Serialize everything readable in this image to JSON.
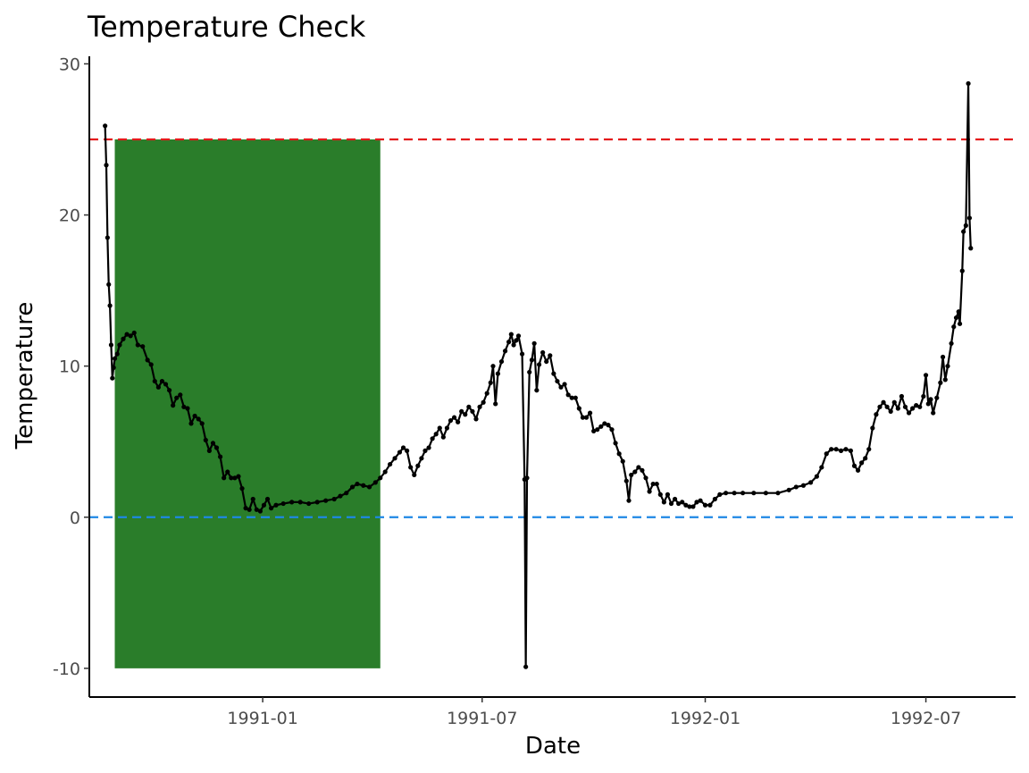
{
  "chart_data": {
    "type": "line",
    "title": "Temperature Check",
    "xlabel": "Date",
    "ylabel": "Temperature",
    "x_type": "date",
    "xlim": [
      "1990-08-11",
      "1992-09-13"
    ],
    "ylim": [
      -11.9,
      30.5
    ],
    "x_ticks": [
      {
        "value": "1991-01-01",
        "label": "1991-01"
      },
      {
        "value": "1991-07-01",
        "label": "1991-07"
      },
      {
        "value": "1992-01-01",
        "label": "1992-01"
      },
      {
        "value": "1992-07-01",
        "label": "1992-07"
      }
    ],
    "y_ticks": [
      {
        "value": -10,
        "label": "-10"
      },
      {
        "value": 0,
        "label": "0"
      },
      {
        "value": 10,
        "label": "10"
      },
      {
        "value": 20,
        "label": "20"
      },
      {
        "value": 30,
        "label": "30"
      }
    ],
    "reference_lines": [
      {
        "y": 25,
        "color": "#e41a1c",
        "style": "dashed"
      },
      {
        "y": 0,
        "color": "#1e88e5",
        "style": "dashed"
      }
    ],
    "shaded_region": {
      "x_start": "1990-09-01",
      "x_end": "1991-04-08",
      "y_start": -10,
      "y_end": 25,
      "color": "#2a7d2a"
    },
    "series": [
      {
        "color": "#000000",
        "points": [
          [
            "1990-08-24",
            25.9
          ],
          [
            "1990-08-25",
            23.3
          ],
          [
            "1990-08-26",
            18.5
          ],
          [
            "1990-08-27",
            15.4
          ],
          [
            "1990-08-28",
            14.0
          ],
          [
            "1990-08-29",
            11.4
          ],
          [
            "1990-08-30",
            9.2
          ],
          [
            "1990-08-31",
            9.9
          ],
          [
            "1990-09-01",
            10.5
          ],
          [
            "1990-09-03",
            10.8
          ],
          [
            "1990-09-05",
            11.4
          ],
          [
            "1990-09-08",
            11.8
          ],
          [
            "1990-09-11",
            12.1
          ],
          [
            "1990-09-14",
            12.0
          ],
          [
            "1990-09-17",
            12.2
          ],
          [
            "1990-09-20",
            11.4
          ],
          [
            "1990-09-24",
            11.3
          ],
          [
            "1990-09-28",
            10.4
          ],
          [
            "1990-10-01",
            10.1
          ],
          [
            "1990-10-04",
            9.0
          ],
          [
            "1990-10-07",
            8.6
          ],
          [
            "1990-10-10",
            9.0
          ],
          [
            "1990-10-13",
            8.8
          ],
          [
            "1990-10-16",
            8.4
          ],
          [
            "1990-10-19",
            7.4
          ],
          [
            "1990-10-22",
            7.9
          ],
          [
            "1990-10-25",
            8.1
          ],
          [
            "1990-10-28",
            7.3
          ],
          [
            "1990-10-31",
            7.2
          ],
          [
            "1990-11-03",
            6.2
          ],
          [
            "1990-11-06",
            6.7
          ],
          [
            "1990-11-09",
            6.5
          ],
          [
            "1990-11-12",
            6.2
          ],
          [
            "1990-11-15",
            5.1
          ],
          [
            "1990-11-18",
            4.4
          ],
          [
            "1990-11-21",
            4.9
          ],
          [
            "1990-11-24",
            4.6
          ],
          [
            "1990-11-27",
            4.0
          ],
          [
            "1990-11-30",
            2.6
          ],
          [
            "1990-12-03",
            3.0
          ],
          [
            "1990-12-06",
            2.6
          ],
          [
            "1990-12-09",
            2.6
          ],
          [
            "1990-12-12",
            2.7
          ],
          [
            "1990-12-15",
            1.9
          ],
          [
            "1990-12-18",
            0.6
          ],
          [
            "1990-12-21",
            0.5
          ],
          [
            "1990-12-24",
            1.2
          ],
          [
            "1990-12-27",
            0.5
          ],
          [
            "1990-12-30",
            0.4
          ],
          [
            "1991-01-02",
            0.8
          ],
          [
            "1991-01-05",
            1.2
          ],
          [
            "1991-01-08",
            0.6
          ],
          [
            "1991-01-12",
            0.8
          ],
          [
            "1991-01-18",
            0.9
          ],
          [
            "1991-01-25",
            1.0
          ],
          [
            "1991-02-01",
            1.0
          ],
          [
            "1991-02-08",
            0.9
          ],
          [
            "1991-02-15",
            1.0
          ],
          [
            "1991-02-22",
            1.1
          ],
          [
            "1991-03-01",
            1.2
          ],
          [
            "1991-03-06",
            1.4
          ],
          [
            "1991-03-11",
            1.6
          ],
          [
            "1991-03-16",
            2.0
          ],
          [
            "1991-03-20",
            2.2
          ],
          [
            "1991-03-25",
            2.1
          ],
          [
            "1991-03-30",
            2.0
          ],
          [
            "1991-04-04",
            2.3
          ],
          [
            "1991-04-08",
            2.6
          ],
          [
            "1991-04-12",
            3.0
          ],
          [
            "1991-04-16",
            3.5
          ],
          [
            "1991-04-20",
            3.9
          ],
          [
            "1991-04-24",
            4.3
          ],
          [
            "1991-04-27",
            4.6
          ],
          [
            "1991-04-30",
            4.4
          ],
          [
            "1991-05-03",
            3.3
          ],
          [
            "1991-05-06",
            2.8
          ],
          [
            "1991-05-09",
            3.4
          ],
          [
            "1991-05-12",
            3.9
          ],
          [
            "1991-05-15",
            4.4
          ],
          [
            "1991-05-18",
            4.6
          ],
          [
            "1991-05-21",
            5.2
          ],
          [
            "1991-05-24",
            5.5
          ],
          [
            "1991-05-27",
            5.9
          ],
          [
            "1991-05-30",
            5.3
          ],
          [
            "1991-06-02",
            5.9
          ],
          [
            "1991-06-05",
            6.4
          ],
          [
            "1991-06-08",
            6.6
          ],
          [
            "1991-06-11",
            6.3
          ],
          [
            "1991-06-14",
            7.0
          ],
          [
            "1991-06-17",
            6.8
          ],
          [
            "1991-06-20",
            7.3
          ],
          [
            "1991-06-23",
            7.0
          ],
          [
            "1991-06-26",
            6.5
          ],
          [
            "1991-06-29",
            7.3
          ],
          [
            "1991-07-02",
            7.6
          ],
          [
            "1991-07-05",
            8.2
          ],
          [
            "1991-07-08",
            8.9
          ],
          [
            "1991-07-10",
            10.0
          ],
          [
            "1991-07-12",
            7.5
          ],
          [
            "1991-07-14",
            9.5
          ],
          [
            "1991-07-17",
            10.3
          ],
          [
            "1991-07-20",
            11.0
          ],
          [
            "1991-07-23",
            11.6
          ],
          [
            "1991-07-25",
            12.1
          ],
          [
            "1991-07-27",
            11.4
          ],
          [
            "1991-07-29",
            11.7
          ],
          [
            "1991-07-31",
            12.0
          ],
          [
            "1991-08-03",
            10.8
          ],
          [
            "1991-08-05",
            2.5
          ],
          [
            "1991-08-06",
            -9.9
          ],
          [
            "1991-08-07",
            2.6
          ],
          [
            "1991-08-09",
            9.6
          ],
          [
            "1991-08-11",
            10.4
          ],
          [
            "1991-08-13",
            11.5
          ],
          [
            "1991-08-15",
            8.4
          ],
          [
            "1991-08-17",
            10.1
          ],
          [
            "1991-08-20",
            10.9
          ],
          [
            "1991-08-23",
            10.3
          ],
          [
            "1991-08-26",
            10.7
          ],
          [
            "1991-08-29",
            9.5
          ],
          [
            "1991-09-01",
            9.0
          ],
          [
            "1991-09-04",
            8.6
          ],
          [
            "1991-09-07",
            8.8
          ],
          [
            "1991-09-10",
            8.1
          ],
          [
            "1991-09-13",
            7.9
          ],
          [
            "1991-09-16",
            7.9
          ],
          [
            "1991-09-19",
            7.2
          ],
          [
            "1991-09-22",
            6.6
          ],
          [
            "1991-09-25",
            6.6
          ],
          [
            "1991-09-28",
            6.9
          ],
          [
            "1991-10-01",
            5.7
          ],
          [
            "1991-10-04",
            5.8
          ],
          [
            "1991-10-07",
            6.0
          ],
          [
            "1991-10-10",
            6.2
          ],
          [
            "1991-10-13",
            6.1
          ],
          [
            "1991-10-16",
            5.8
          ],
          [
            "1991-10-19",
            4.9
          ],
          [
            "1991-10-22",
            4.2
          ],
          [
            "1991-10-25",
            3.7
          ],
          [
            "1991-10-28",
            2.4
          ],
          [
            "1991-10-30",
            1.1
          ],
          [
            "1991-11-01",
            2.8
          ],
          [
            "1991-11-04",
            3.0
          ],
          [
            "1991-11-07",
            3.3
          ],
          [
            "1991-11-10",
            3.1
          ],
          [
            "1991-11-13",
            2.6
          ],
          [
            "1991-11-16",
            1.7
          ],
          [
            "1991-11-19",
            2.2
          ],
          [
            "1991-11-22",
            2.2
          ],
          [
            "1991-11-25",
            1.5
          ],
          [
            "1991-11-28",
            1.0
          ],
          [
            "1991-12-01",
            1.5
          ],
          [
            "1991-12-04",
            0.9
          ],
          [
            "1991-12-07",
            1.2
          ],
          [
            "1991-12-10",
            0.9
          ],
          [
            "1991-12-13",
            1.0
          ],
          [
            "1991-12-16",
            0.8
          ],
          [
            "1991-12-19",
            0.7
          ],
          [
            "1991-12-22",
            0.7
          ],
          [
            "1991-12-25",
            1.0
          ],
          [
            "1991-12-28",
            1.1
          ],
          [
            "1992-01-01",
            0.8
          ],
          [
            "1992-01-05",
            0.8
          ],
          [
            "1992-01-09",
            1.2
          ],
          [
            "1992-01-13",
            1.5
          ],
          [
            "1992-01-18",
            1.6
          ],
          [
            "1992-01-25",
            1.6
          ],
          [
            "1992-02-01",
            1.6
          ],
          [
            "1992-02-10",
            1.6
          ],
          [
            "1992-02-20",
            1.6
          ],
          [
            "1992-03-01",
            1.6
          ],
          [
            "1992-03-10",
            1.8
          ],
          [
            "1992-03-16",
            2.0
          ],
          [
            "1992-03-22",
            2.1
          ],
          [
            "1992-03-28",
            2.3
          ],
          [
            "1992-04-02",
            2.7
          ],
          [
            "1992-04-06",
            3.3
          ],
          [
            "1992-04-10",
            4.2
          ],
          [
            "1992-04-14",
            4.5
          ],
          [
            "1992-04-18",
            4.5
          ],
          [
            "1992-04-22",
            4.4
          ],
          [
            "1992-04-26",
            4.5
          ],
          [
            "1992-04-30",
            4.4
          ],
          [
            "1992-05-03",
            3.4
          ],
          [
            "1992-05-06",
            3.1
          ],
          [
            "1992-05-09",
            3.6
          ],
          [
            "1992-05-12",
            3.9
          ],
          [
            "1992-05-15",
            4.5
          ],
          [
            "1992-05-18",
            5.9
          ],
          [
            "1992-05-21",
            6.8
          ],
          [
            "1992-05-24",
            7.3
          ],
          [
            "1992-05-27",
            7.6
          ],
          [
            "1992-05-30",
            7.3
          ],
          [
            "1992-06-02",
            7.0
          ],
          [
            "1992-06-05",
            7.6
          ],
          [
            "1992-06-08",
            7.2
          ],
          [
            "1992-06-11",
            8.0
          ],
          [
            "1992-06-14",
            7.3
          ],
          [
            "1992-06-17",
            6.9
          ],
          [
            "1992-06-20",
            7.2
          ],
          [
            "1992-06-23",
            7.4
          ],
          [
            "1992-06-26",
            7.3
          ],
          [
            "1992-06-29",
            8.0
          ],
          [
            "1992-07-01",
            9.4
          ],
          [
            "1992-07-03",
            7.5
          ],
          [
            "1992-07-05",
            7.8
          ],
          [
            "1992-07-07",
            6.9
          ],
          [
            "1992-07-10",
            7.9
          ],
          [
            "1992-07-13",
            8.9
          ],
          [
            "1992-07-15",
            10.6
          ],
          [
            "1992-07-17",
            9.1
          ],
          [
            "1992-07-19",
            10.0
          ],
          [
            "1992-07-22",
            11.5
          ],
          [
            "1992-07-24",
            12.6
          ],
          [
            "1992-07-26",
            13.2
          ],
          [
            "1992-07-28",
            13.6
          ],
          [
            "1992-07-29",
            12.8
          ],
          [
            "1992-07-31",
            16.3
          ],
          [
            "1992-08-01",
            18.9
          ],
          [
            "1992-08-03",
            19.3
          ],
          [
            "1992-08-05",
            28.7
          ],
          [
            "1992-08-06",
            19.8
          ],
          [
            "1992-08-07",
            17.8
          ]
        ]
      }
    ]
  }
}
